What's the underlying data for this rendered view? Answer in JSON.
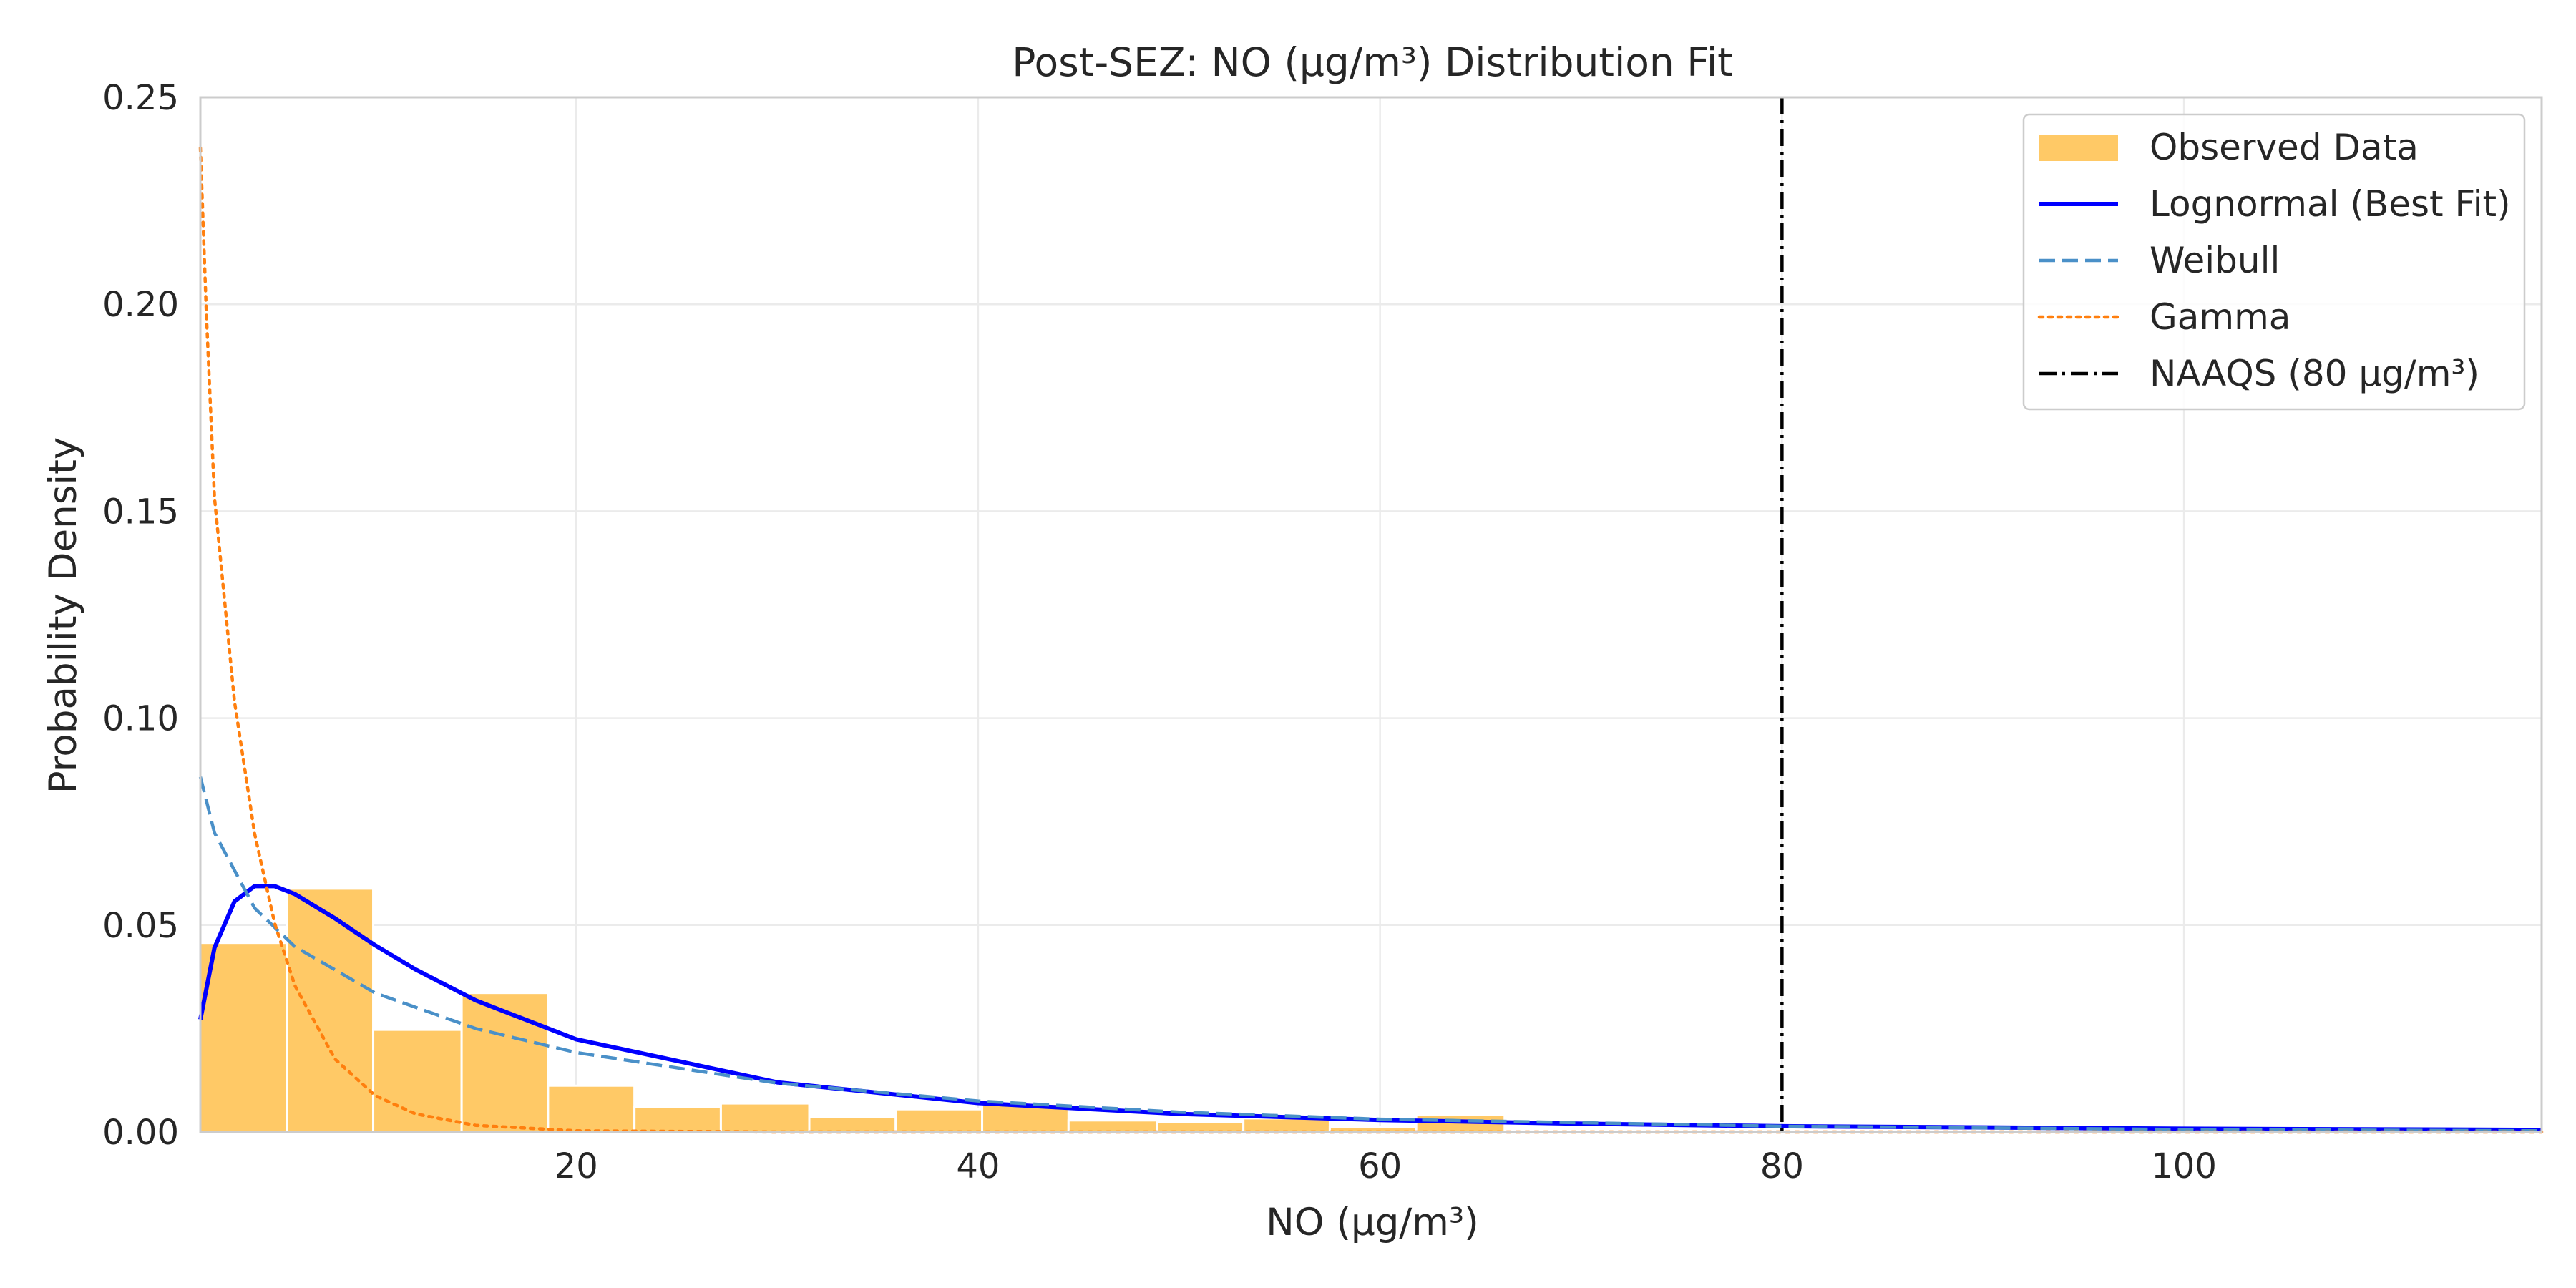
{
  "chart_data": {
    "type": "histogram",
    "title": "Post-SEZ: NO (µg/m³) Distribution Fit",
    "xlabel": "NO (µg/m³)",
    "ylabel": "Probability Density",
    "xlim": [
      1.3,
      117.8
    ],
    "ylim": [
      0,
      0.25
    ],
    "x_ticks": [
      20,
      40,
      60,
      80,
      100
    ],
    "y_ticks": [
      0.0,
      0.05,
      0.1,
      0.15,
      0.2,
      0.25
    ],
    "x_tick_labels": [
      "20",
      "40",
      "60",
      "80",
      "100"
    ],
    "y_tick_labels": [
      "0.00",
      "0.05",
      "0.10",
      "0.15",
      "0.20",
      "0.25"
    ],
    "grid": true,
    "legend_position": "top-right",
    "histogram": {
      "name": "Observed Data",
      "color": "#FFC966",
      "bins": [
        {
          "x0": 1.3,
          "x1": 5.6,
          "density": 0.0457
        },
        {
          "x0": 5.6,
          "x1": 9.9,
          "density": 0.0588
        },
        {
          "x0": 9.9,
          "x1": 14.3,
          "density": 0.0247
        },
        {
          "x0": 14.3,
          "x1": 18.6,
          "density": 0.0336
        },
        {
          "x0": 18.6,
          "x1": 22.9,
          "density": 0.0112
        },
        {
          "x0": 22.9,
          "x1": 27.2,
          "density": 0.0061
        },
        {
          "x0": 27.2,
          "x1": 31.6,
          "density": 0.0069
        },
        {
          "x0": 31.6,
          "x1": 35.9,
          "density": 0.0037
        },
        {
          "x0": 35.9,
          "x1": 40.2,
          "density": 0.0055
        },
        {
          "x0": 40.2,
          "x1": 44.5,
          "density": 0.0068
        },
        {
          "x0": 44.5,
          "x1": 48.9,
          "density": 0.0028
        },
        {
          "x0": 48.9,
          "x1": 53.2,
          "density": 0.0024
        },
        {
          "x0": 53.2,
          "x1": 57.5,
          "density": 0.0033
        },
        {
          "x0": 57.5,
          "x1": 61.8,
          "density": 0.0012
        },
        {
          "x0": 61.8,
          "x1": 66.2,
          "density": 0.0041
        }
      ]
    },
    "series": [
      {
        "name": "Lognormal (Best Fit)",
        "dist": "lognormal",
        "mu": 2.45,
        "sigma": 1.0,
        "color": "#0000FF",
        "dash": "solid",
        "x": [
          1.3,
          2,
          3,
          4,
          5,
          6,
          8,
          10,
          12,
          15,
          20,
          30,
          40,
          50,
          60,
          70,
          80,
          100,
          117.8
        ],
        "y": [
          0.0272,
          0.0445,
          0.0557,
          0.0594,
          0.0594,
          0.0575,
          0.0516,
          0.0451,
          0.0393,
          0.0318,
          0.0224,
          0.012,
          0.007,
          0.0044,
          0.0029,
          0.002,
          0.0014,
          0.0008,
          0.0005
        ]
      },
      {
        "name": "Weibull",
        "dist": "weibull",
        "k": 0.83,
        "lambda": 13.0,
        "color": "#4A90C8",
        "dash": "dashed",
        "x": [
          1.3,
          2,
          4,
          6,
          10,
          15,
          20,
          30,
          40,
          50,
          60,
          80,
          100,
          117.8
        ],
        "y": [
          0.0858,
          0.0723,
          0.0541,
          0.0448,
          0.0336,
          0.025,
          0.0192,
          0.0118,
          0.0075,
          0.0048,
          0.0031,
          0.0014,
          0.0006,
          0.0003
        ]
      },
      {
        "name": "Gamma",
        "dist": "gamma",
        "shape": 0.5,
        "scale": 2.0,
        "color": "#FF7F0E",
        "dash": "dotted",
        "x": [
          1.3,
          1.6,
          2,
          3,
          4,
          5,
          6,
          8,
          10,
          12,
          15,
          20,
          30,
          117.8
        ],
        "y": [
          0.2378,
          0.1976,
          0.1533,
          0.104,
          0.0721,
          0.0504,
          0.0354,
          0.0176,
          0.0088,
          0.0044,
          0.0016,
          0.0003,
          0.0,
          0.0
        ]
      }
    ],
    "reference_line": {
      "name": "NAAQS (80 µg/m³)",
      "x": 80,
      "color": "#000000",
      "dash": "dashdot"
    }
  }
}
